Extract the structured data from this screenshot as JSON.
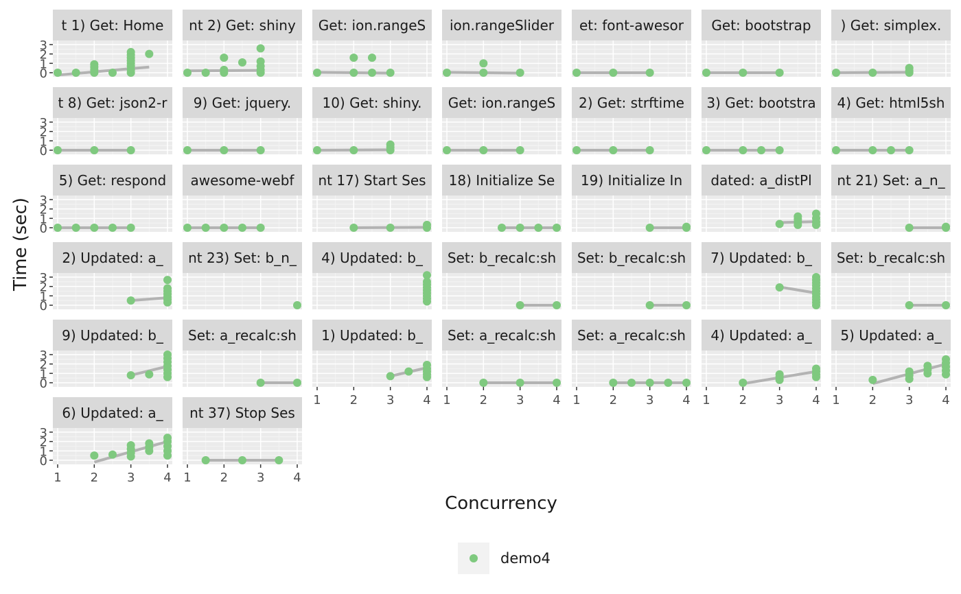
{
  "chart_data": {
    "type": "scatter",
    "facet_layout": {
      "columns": 7
    },
    "ylabel": "Time (sec)",
    "xlabel": "Concurrency",
    "xlim": [
      1,
      4
    ],
    "ylim": [
      0,
      3
    ],
    "x_ticks": [
      "1",
      "2",
      "3",
      "4"
    ],
    "y_ticks": [
      "0",
      "1",
      "2",
      "3"
    ],
    "legend": {
      "position": "bottom",
      "entries": [
        {
          "label": "demo4",
          "color": "#7fc97f"
        }
      ]
    },
    "point_color": "#7fc97f",
    "line_color": "#b3b3b3",
    "panel_bg": "#ebebeb",
    "strip_bg": "#d9d9d9",
    "panels": [
      {
        "label": "t 1) Get: Home",
        "points": [
          [
            1,
            0
          ],
          [
            1.5,
            0
          ],
          [
            2,
            0
          ],
          [
            2,
            0.3
          ],
          [
            2,
            0.6
          ],
          [
            2,
            0.9
          ],
          [
            2.5,
            0
          ],
          [
            3,
            0
          ],
          [
            3,
            0.3
          ],
          [
            3,
            0.7
          ],
          [
            3,
            1.0
          ],
          [
            3,
            1.3
          ],
          [
            3,
            1.6
          ],
          [
            3,
            1.9
          ],
          [
            3,
            2.2
          ],
          [
            3.5,
            2.0
          ]
        ],
        "fit": [
          [
            1,
            -0.25
          ],
          [
            3.5,
            0.6
          ]
        ]
      },
      {
        "label": "nt 2) Get: shiny",
        "points": [
          [
            1,
            0
          ],
          [
            1.5,
            0
          ],
          [
            2,
            0
          ],
          [
            2,
            0.3
          ],
          [
            2,
            1.6
          ],
          [
            2.5,
            1.1
          ],
          [
            3,
            0
          ],
          [
            3,
            0.3
          ],
          [
            3,
            0.7
          ],
          [
            3,
            1.2
          ],
          [
            3,
            2.6
          ]
        ],
        "fit": [
          [
            1,
            0.2
          ],
          [
            3,
            0.25
          ]
        ]
      },
      {
        "label": "Get: ion.rangeS",
        "points": [
          [
            1,
            0
          ],
          [
            2,
            0
          ],
          [
            2,
            1.6
          ],
          [
            2.5,
            0
          ],
          [
            2.5,
            1.6
          ],
          [
            3,
            0
          ]
        ],
        "fit": [
          [
            1,
            0.05
          ],
          [
            3,
            -0.05
          ]
        ]
      },
      {
        "label": "ion.rangeSlider",
        "points": [
          [
            1,
            0
          ],
          [
            2,
            0
          ],
          [
            2,
            1.0
          ],
          [
            3,
            0
          ]
        ],
        "fit": [
          [
            1,
            0.05
          ],
          [
            3,
            -0.05
          ]
        ]
      },
      {
        "label": "et: font-awesor",
        "points": [
          [
            1,
            0
          ],
          [
            2,
            0
          ],
          [
            3,
            0
          ]
        ],
        "fit": [
          [
            1,
            0
          ],
          [
            3,
            0
          ]
        ]
      },
      {
        "label": " Get: bootstrap",
        "points": [
          [
            1,
            0
          ],
          [
            2,
            0
          ],
          [
            3,
            0
          ]
        ],
        "fit": [
          [
            1,
            0
          ],
          [
            3,
            0
          ]
        ]
      },
      {
        "label": ") Get: simplex.",
        "points": [
          [
            1,
            0
          ],
          [
            2,
            0
          ],
          [
            3,
            0
          ],
          [
            3,
            0.2
          ],
          [
            3,
            0.5
          ]
        ],
        "fit": [
          [
            1,
            0
          ],
          [
            3,
            0.05
          ]
        ]
      },
      {
        "label": "t 8) Get: json2-r",
        "points": [
          [
            1,
            0
          ],
          [
            2,
            0
          ],
          [
            3,
            0
          ]
        ],
        "fit": [
          [
            1,
            0
          ],
          [
            3,
            0
          ]
        ]
      },
      {
        "label": " 9) Get: jquery.",
        "points": [
          [
            1,
            0
          ],
          [
            2,
            0
          ],
          [
            3,
            0
          ]
        ],
        "fit": [
          [
            1,
            0
          ],
          [
            3,
            0
          ]
        ]
      },
      {
        "label": " 10) Get: shiny.",
        "points": [
          [
            1,
            0
          ],
          [
            2,
            0
          ],
          [
            3,
            0
          ],
          [
            3,
            0.3
          ],
          [
            3,
            0.6
          ]
        ],
        "fit": [
          [
            1,
            0
          ],
          [
            3,
            0.05
          ]
        ]
      },
      {
        "label": "Get: ion.rangeS",
        "points": [
          [
            1,
            0
          ],
          [
            2,
            0
          ],
          [
            3,
            0
          ]
        ],
        "fit": [
          [
            1,
            0
          ],
          [
            3,
            0
          ]
        ]
      },
      {
        "label": "2) Get: strftime",
        "points": [
          [
            1,
            0
          ],
          [
            2,
            0
          ],
          [
            3,
            0
          ]
        ],
        "fit": [
          [
            1,
            0
          ],
          [
            3,
            0
          ]
        ]
      },
      {
        "label": "3) Get: bootstra",
        "points": [
          [
            1,
            0
          ],
          [
            2,
            0
          ],
          [
            2.5,
            0
          ],
          [
            3,
            0
          ]
        ],
        "fit": [
          [
            1,
            0
          ],
          [
            3,
            0
          ]
        ]
      },
      {
        "label": "4) Get: html5sh",
        "points": [
          [
            1,
            0
          ],
          [
            2,
            0
          ],
          [
            2.5,
            0
          ],
          [
            3,
            0
          ]
        ],
        "fit": [
          [
            1,
            0
          ],
          [
            3,
            0
          ]
        ]
      },
      {
        "label": "5) Get: respond",
        "points": [
          [
            1,
            0
          ],
          [
            1.5,
            0
          ],
          [
            2,
            0
          ],
          [
            2.5,
            0
          ],
          [
            3,
            0
          ]
        ],
        "fit": [
          [
            1,
            0
          ],
          [
            3,
            0
          ]
        ]
      },
      {
        "label": "awesome-webf",
        "points": [
          [
            1,
            0
          ],
          [
            1.5,
            0
          ],
          [
            2,
            0
          ],
          [
            2.5,
            0
          ],
          [
            3,
            0
          ]
        ],
        "fit": [
          [
            1,
            0
          ],
          [
            3,
            0
          ]
        ]
      },
      {
        "label": "nt 17) Start Ses",
        "points": [
          [
            2,
            0
          ],
          [
            3,
            0
          ],
          [
            4,
            0
          ],
          [
            4,
            0.3
          ]
        ],
        "fit": [
          [
            2,
            0
          ],
          [
            4,
            0.05
          ]
        ]
      },
      {
        "label": " 18) Initialize Se",
        "points": [
          [
            2.5,
            0
          ],
          [
            3,
            0
          ],
          [
            3.5,
            0
          ],
          [
            4,
            0
          ]
        ],
        "fit": [
          [
            2.5,
            0
          ],
          [
            4,
            0
          ]
        ]
      },
      {
        "label": " 19) Initialize In",
        "points": [
          [
            3,
            0
          ],
          [
            4,
            0
          ],
          [
            4,
            0.1
          ]
        ],
        "fit": [
          [
            3,
            0
          ],
          [
            4,
            0
          ]
        ]
      },
      {
        "label": "dated: a_distPl",
        "points": [
          [
            3,
            0.4
          ],
          [
            3.5,
            0.3
          ],
          [
            3.5,
            0.6
          ],
          [
            3.5,
            0.9
          ],
          [
            3.5,
            1.2
          ],
          [
            4,
            0.3
          ],
          [
            4,
            0.6
          ],
          [
            4,
            1.0
          ],
          [
            4,
            1.5
          ]
        ],
        "fit": [
          [
            3,
            0.55
          ],
          [
            4,
            0.65
          ]
        ]
      },
      {
        "label": "nt 21) Set: a_n_",
        "points": [
          [
            3,
            0
          ],
          [
            4,
            0
          ],
          [
            4,
            0.1
          ]
        ],
        "fit": [
          [
            3,
            0
          ],
          [
            4,
            0
          ]
        ]
      },
      {
        "label": "2) Updated: a_",
        "points": [
          [
            3,
            0.5
          ],
          [
            4,
            0.3
          ],
          [
            4,
            0.6
          ],
          [
            4,
            0.9
          ],
          [
            4,
            1.2
          ],
          [
            4,
            1.5
          ],
          [
            4,
            1.8
          ],
          [
            4,
            2.7
          ]
        ],
        "fit": [
          [
            3,
            0.5
          ],
          [
            4,
            0.8
          ]
        ]
      },
      {
        "label": "nt 23) Set: b_n_",
        "points": [
          [
            4,
            0
          ]
        ],
        "fit": []
      },
      {
        "label": "4) Updated: b_",
        "points": [
          [
            4,
            0.4
          ],
          [
            4,
            0.7
          ],
          [
            4,
            1.0
          ],
          [
            4,
            1.3
          ],
          [
            4,
            1.6
          ],
          [
            4,
            1.9
          ],
          [
            4,
            2.2
          ],
          [
            4,
            2.5
          ],
          [
            4,
            3.2
          ]
        ],
        "fit": []
      },
      {
        "label": "Set: b_recalc:sh",
        "points": [
          [
            3,
            0
          ],
          [
            4,
            0
          ]
        ],
        "fit": [
          [
            3,
            0
          ],
          [
            4,
            0
          ]
        ]
      },
      {
        "label": "Set: b_recalc:sh",
        "points": [
          [
            3,
            0
          ],
          [
            4,
            0
          ]
        ],
        "fit": [
          [
            3,
            0
          ],
          [
            4,
            0
          ]
        ]
      },
      {
        "label": "7) Updated: b_",
        "points": [
          [
            3,
            1.9
          ],
          [
            4,
            0
          ],
          [
            4,
            0.3
          ],
          [
            4,
            0.6
          ],
          [
            4,
            0.9
          ],
          [
            4,
            1.2
          ],
          [
            4,
            1.5
          ],
          [
            4,
            1.8
          ],
          [
            4,
            2.1
          ],
          [
            4,
            2.4
          ],
          [
            4,
            2.7
          ],
          [
            4,
            3.0
          ]
        ],
        "fit": [
          [
            3,
            1.95
          ],
          [
            4,
            1.3
          ]
        ]
      },
      {
        "label": "Set: b_recalc:sh",
        "points": [
          [
            3,
            0
          ],
          [
            4,
            0
          ]
        ],
        "fit": [
          [
            3,
            0
          ],
          [
            4,
            0
          ]
        ]
      },
      {
        "label": "9) Updated: b_",
        "points": [
          [
            3,
            0.8
          ],
          [
            3.5,
            0.9
          ],
          [
            4,
            0.6
          ],
          [
            4,
            1.0
          ],
          [
            4,
            1.4
          ],
          [
            4,
            1.8
          ],
          [
            4,
            2.2
          ],
          [
            4,
            2.6
          ],
          [
            4,
            3.0
          ]
        ],
        "fit": [
          [
            3,
            0.8
          ],
          [
            4,
            1.75
          ]
        ]
      },
      {
        "label": "Set: a_recalc:sh",
        "points": [
          [
            3,
            0
          ],
          [
            4,
            0
          ]
        ],
        "fit": [
          [
            3,
            0
          ],
          [
            4,
            0
          ]
        ]
      },
      {
        "label": "1) Updated: b_",
        "points": [
          [
            3,
            0.7
          ],
          [
            3.5,
            1.2
          ],
          [
            4,
            0.6
          ],
          [
            4,
            0.9
          ],
          [
            4,
            1.2
          ],
          [
            4,
            1.5
          ],
          [
            4,
            1.9
          ]
        ],
        "fit": [
          [
            3,
            0.7
          ],
          [
            4,
            1.6
          ]
        ]
      },
      {
        "label": "Set: a_recalc:sh",
        "points": [
          [
            2,
            0
          ],
          [
            3,
            0
          ],
          [
            4,
            0
          ]
        ],
        "fit": [
          [
            2,
            0
          ],
          [
            4,
            0
          ]
        ]
      },
      {
        "label": "Set: a_recalc:sh",
        "points": [
          [
            2,
            0
          ],
          [
            2.5,
            0
          ],
          [
            3,
            0
          ],
          [
            3.5,
            0
          ],
          [
            4,
            0
          ]
        ],
        "fit": [
          [
            2,
            0
          ],
          [
            4,
            0
          ]
        ]
      },
      {
        "label": "4) Updated: a_",
        "points": [
          [
            2,
            0
          ],
          [
            3,
            0.3
          ],
          [
            3,
            0.6
          ],
          [
            3,
            0.9
          ],
          [
            4,
            0.6
          ],
          [
            4,
            0.9
          ],
          [
            4,
            1.2
          ],
          [
            4,
            1.5
          ]
        ],
        "fit": [
          [
            2,
            -0.1
          ],
          [
            4,
            1.2
          ]
        ]
      },
      {
        "label": "5) Updated: a_",
        "points": [
          [
            2,
            0.3
          ],
          [
            3,
            0.4
          ],
          [
            3,
            0.8
          ],
          [
            3,
            1.2
          ],
          [
            3.5,
            1.0
          ],
          [
            3.5,
            1.4
          ],
          [
            3.5,
            1.8
          ],
          [
            4,
            0.9
          ],
          [
            4,
            1.3
          ],
          [
            4,
            1.7
          ],
          [
            4,
            2.1
          ],
          [
            4,
            2.5
          ]
        ],
        "fit": [
          [
            2,
            -0.1
          ],
          [
            4,
            2.0
          ]
        ]
      },
      {
        "label": "6) Updated: a_",
        "points": [
          [
            2,
            0.5
          ],
          [
            2.5,
            0.6
          ],
          [
            3,
            0.4
          ],
          [
            3,
            0.8
          ],
          [
            3,
            1.2
          ],
          [
            3,
            1.6
          ],
          [
            3.5,
            1.0
          ],
          [
            3.5,
            1.4
          ],
          [
            3.5,
            1.8
          ],
          [
            4,
            0.5
          ],
          [
            4,
            1.0
          ],
          [
            4,
            1.5
          ],
          [
            4,
            2.0
          ],
          [
            4,
            2.4
          ]
        ],
        "fit": [
          [
            2,
            -0.2
          ],
          [
            4,
            2.0
          ]
        ]
      },
      {
        "label": "nt 37) Stop Ses",
        "points": [
          [
            1.5,
            0
          ],
          [
            2.5,
            0
          ],
          [
            3.5,
            0
          ]
        ],
        "fit": [
          [
            1.5,
            0
          ],
          [
            3.5,
            0
          ]
        ]
      }
    ]
  }
}
